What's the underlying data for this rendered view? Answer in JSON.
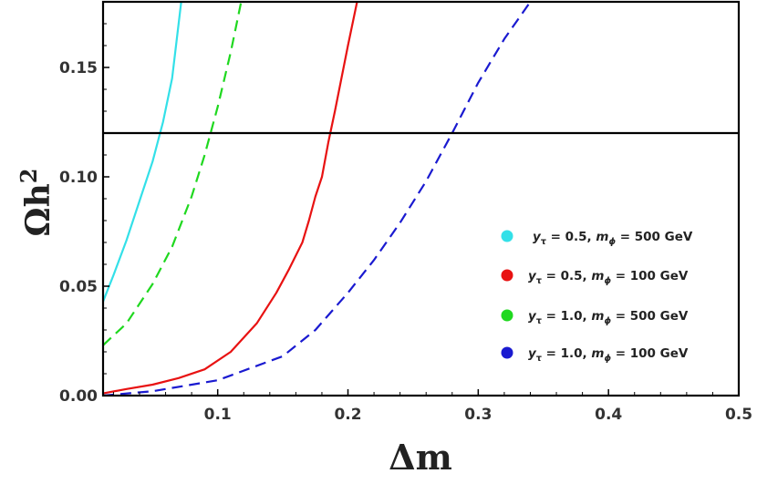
{
  "chart_data": {
    "type": "line",
    "xlabel": "Δm",
    "ylabel_main": "Ωh",
    "ylabel_sup": "2",
    "xlim": [
      0.012,
      0.5
    ],
    "ylim": [
      0,
      0.18
    ],
    "x_ticks": [
      0.1,
      0.2,
      0.3,
      0.4,
      0.5
    ],
    "x_tick_labels": [
      "0.1",
      "0.2",
      "0.3",
      "0.4",
      "0.5"
    ],
    "y_ticks": [
      0,
      0.05,
      0.1,
      0.15
    ],
    "y_tick_labels": [
      "0.00",
      "0.05",
      "0.10",
      "0.15"
    ],
    "hline": {
      "y": 0.12,
      "color": "#000000"
    },
    "series": [
      {
        "color": "#33e0e8",
        "dash": "solid",
        "legend": {
          "y": "y",
          "ysub": "τ",
          "yval": " = 0.5, ",
          "m": "m",
          "msub": "ϕ",
          "mval": " = 500 GeV"
        },
        "x": [
          0.012,
          0.02,
          0.03,
          0.04,
          0.05,
          0.058,
          0.065,
          0.072
        ],
        "y": [
          0.043,
          0.055,
          0.071,
          0.089,
          0.107,
          0.125,
          0.145,
          0.18
        ]
      },
      {
        "color": "#e81212",
        "dash": "solid",
        "legend": {
          "y": "y",
          "ysub": "τ",
          "yval": " = 0.5, ",
          "m": "m",
          "msub": "ϕ",
          "mval": " = 100 GeV"
        },
        "x": [
          0.012,
          0.03,
          0.05,
          0.07,
          0.09,
          0.11,
          0.13,
          0.145,
          0.155,
          0.165,
          0.17,
          0.175,
          0.18,
          0.185,
          0.19,
          0.2,
          0.207
        ],
        "y": [
          0.001,
          0.003,
          0.005,
          0.008,
          0.012,
          0.02,
          0.033,
          0.047,
          0.058,
          0.07,
          0.08,
          0.091,
          0.1,
          0.116,
          0.13,
          0.16,
          0.18
        ]
      },
      {
        "color": "#1fd81f",
        "dash": "dashed",
        "legend": {
          "y": "y",
          "ysub": "τ",
          "yval": " = 1.0, ",
          "m": "m",
          "msub": "ϕ",
          "mval": " = 500 GeV"
        },
        "x": [
          0.012,
          0.03,
          0.05,
          0.065,
          0.08,
          0.09,
          0.1,
          0.11,
          0.118
        ],
        "y": [
          0.023,
          0.033,
          0.051,
          0.068,
          0.091,
          0.11,
          0.132,
          0.157,
          0.18
        ]
      },
      {
        "color": "#1a1ad0",
        "dash": "dashed",
        "legend": {
          "y": "y",
          "ysub": "τ",
          "yval": " = 1.0, ",
          "m": "m",
          "msub": "ϕ",
          "mval": " = 100 GeV"
        },
        "x": [
          0.012,
          0.05,
          0.1,
          0.15,
          0.175,
          0.2,
          0.22,
          0.24,
          0.26,
          0.28,
          0.3,
          0.32,
          0.34
        ],
        "y": [
          0.0,
          0.002,
          0.007,
          0.018,
          0.03,
          0.047,
          0.062,
          0.079,
          0.098,
          0.12,
          0.143,
          0.163,
          0.18
        ]
      }
    ],
    "legend_position": "center-right"
  }
}
